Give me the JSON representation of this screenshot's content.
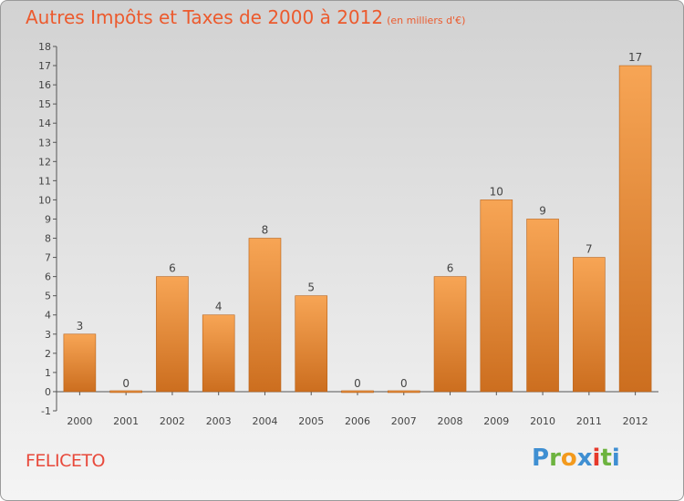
{
  "header": {
    "title": "Autres Impôts et Taxes de 2000 à 2012",
    "unit": "(en milliers d'€)"
  },
  "footer": {
    "place": "FELICETO",
    "logo_letters": [
      "P",
      "r",
      "o",
      "x",
      "i",
      "t",
      "i"
    ]
  },
  "colors": {
    "title": "#ec5a2d",
    "bar_top": "#f7a555",
    "bar_bottom": "#cc6e1f",
    "place": "#e8493b"
  },
  "chart_data": {
    "type": "bar",
    "title": "Autres Impôts et Taxes de 2000 à 2012",
    "ylabel": "(en milliers d'€)",
    "xlabel": "",
    "categories": [
      "2000",
      "2001",
      "2002",
      "2003",
      "2004",
      "2005",
      "2006",
      "2007",
      "2008",
      "2009",
      "2010",
      "2011",
      "2012"
    ],
    "values": [
      3,
      0,
      6,
      4,
      8,
      5,
      0,
      0,
      6,
      10,
      9,
      7,
      17
    ],
    "data_labels": [
      "3",
      "0",
      "6",
      "4",
      "8",
      "5",
      "0",
      "0",
      "6",
      "10",
      "9",
      "7",
      "17"
    ],
    "yticks": [
      18,
      17,
      16,
      15,
      14,
      13,
      12,
      11,
      10,
      9,
      8,
      7,
      6,
      5,
      4,
      3,
      2,
      1,
      0,
      -1
    ],
    "ylim": [
      -1,
      18
    ],
    "grid": false,
    "legend": "none"
  }
}
